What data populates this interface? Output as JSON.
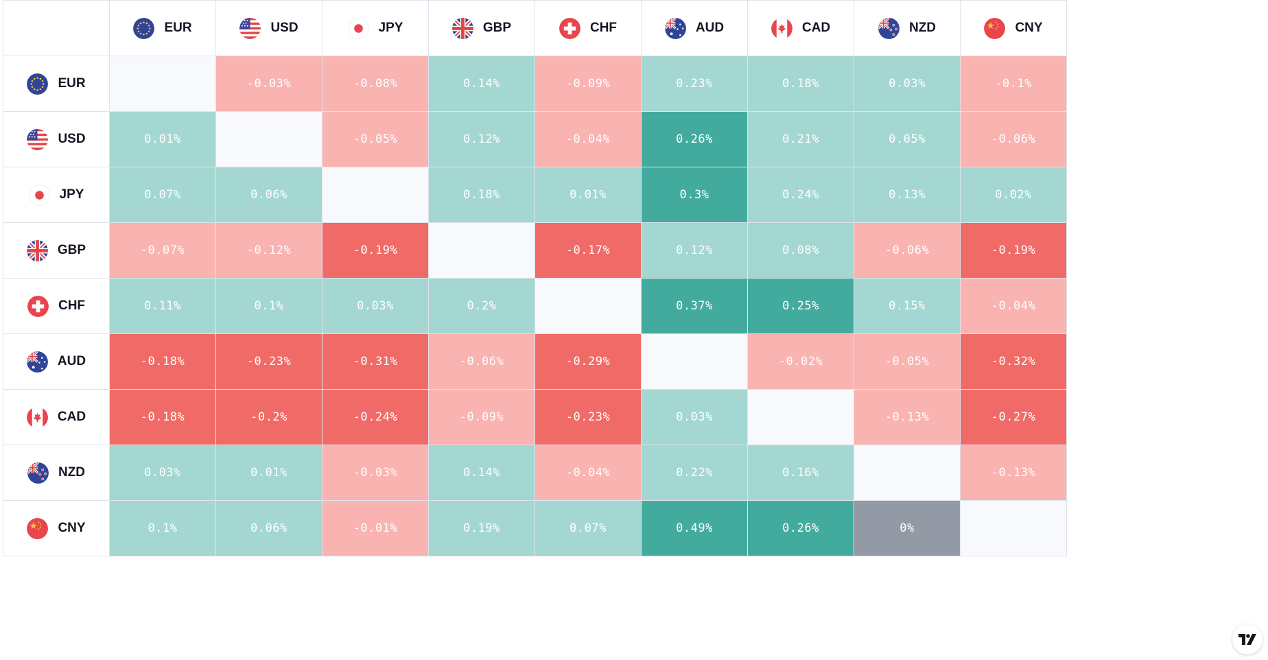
{
  "colors": {
    "strong_positive": "#43ab9e",
    "positive": "#a4d7d1",
    "strong_negative": "#f06b67",
    "negative": "#f9b3b1",
    "zero": "#949aa5",
    "self": "#f8f9fd"
  },
  "currencies": [
    "EUR",
    "USD",
    "JPY",
    "GBP",
    "CHF",
    "AUD",
    "CAD",
    "NZD",
    "CNY"
  ],
  "icons": {
    "EUR": "eu-flag-icon",
    "USD": "us-flag-icon",
    "JPY": "japan-flag-icon",
    "GBP": "uk-flag-icon",
    "CHF": "switzerland-flag-icon",
    "AUD": "australia-flag-icon",
    "CAD": "canada-flag-icon",
    "NZD": "new-zealand-flag-icon",
    "CNY": "china-flag-icon"
  },
  "matrix": [
    [
      "",
      "-0.03%",
      "-0.08%",
      "0.14%",
      "-0.09%",
      "0.23%",
      "0.18%",
      "0.03%",
      "-0.1%"
    ],
    [
      "0.01%",
      "",
      "-0.05%",
      "0.12%",
      "-0.04%",
      "0.26%",
      "0.21%",
      "0.05%",
      "-0.06%"
    ],
    [
      "0.07%",
      "0.06%",
      "",
      "0.18%",
      "0.01%",
      "0.3%",
      "0.24%",
      "0.13%",
      "0.02%"
    ],
    [
      "-0.07%",
      "-0.12%",
      "-0.19%",
      "",
      "-0.17%",
      "0.12%",
      "0.08%",
      "-0.06%",
      "-0.19%"
    ],
    [
      "0.11%",
      "0.1%",
      "0.03%",
      "0.2%",
      "",
      "0.37%",
      "0.25%",
      "0.15%",
      "-0.04%"
    ],
    [
      "-0.18%",
      "-0.23%",
      "-0.31%",
      "-0.06%",
      "-0.29%",
      "",
      "-0.02%",
      "-0.05%",
      "-0.32%"
    ],
    [
      "-0.18%",
      "-0.2%",
      "-0.24%",
      "-0.09%",
      "-0.23%",
      "0.03%",
      "",
      "-0.13%",
      "-0.27%"
    ],
    [
      "0.03%",
      "0.01%",
      "-0.03%",
      "0.14%",
      "-0.04%",
      "0.22%",
      "0.16%",
      "",
      "-0.13%"
    ],
    [
      "0.1%",
      "0.06%",
      "-0.01%",
      "0.19%",
      "0.07%",
      "0.49%",
      "0.26%",
      "0%",
      ""
    ]
  ],
  "tone": [
    [
      "self",
      "negative",
      "negative",
      "positive",
      "negative",
      "positive",
      "positive",
      "positive",
      "negative"
    ],
    [
      "positive",
      "self",
      "negative",
      "positive",
      "negative",
      "strong_positive",
      "positive",
      "positive",
      "negative"
    ],
    [
      "positive",
      "positive",
      "self",
      "positive",
      "positive",
      "strong_positive",
      "positive",
      "positive",
      "positive"
    ],
    [
      "negative",
      "negative",
      "strong_negative",
      "self",
      "strong_negative",
      "positive",
      "positive",
      "negative",
      "strong_negative"
    ],
    [
      "positive",
      "positive",
      "positive",
      "positive",
      "self",
      "strong_positive",
      "strong_positive",
      "positive",
      "negative"
    ],
    [
      "strong_negative",
      "strong_negative",
      "strong_negative",
      "negative",
      "strong_negative",
      "self",
      "negative",
      "negative",
      "strong_negative"
    ],
    [
      "strong_negative",
      "strong_negative",
      "strong_negative",
      "negative",
      "strong_negative",
      "positive",
      "self",
      "negative",
      "strong_negative"
    ],
    [
      "positive",
      "positive",
      "negative",
      "positive",
      "negative",
      "positive",
      "positive",
      "self",
      "negative"
    ],
    [
      "positive",
      "positive",
      "negative",
      "positive",
      "positive",
      "strong_positive",
      "strong_positive",
      "zero",
      "self"
    ]
  ],
  "logo": "tradingview-logo-icon"
}
